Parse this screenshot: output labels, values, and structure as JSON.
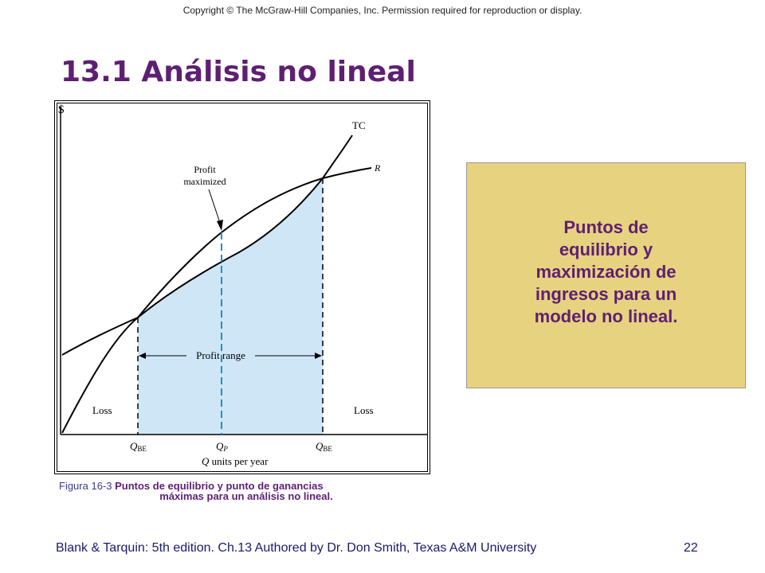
{
  "copyright": "Copyright © The McGraw-Hill Companies, Inc. Permission required for reproduction or display.",
  "title": "13.1 Análisis no lineal",
  "figure": {
    "y_axis_label": "$",
    "curve_tc_label": "TC",
    "curve_r_label": "R",
    "profit_max_label_line1": "Profit",
    "profit_max_label_line2": "maximized",
    "profit_range_label": "Profit range",
    "loss_left_label": "Loss",
    "loss_right_label": "Loss",
    "q_be_left": "Q",
    "q_be_left_sub": "BE",
    "q_p": "Q",
    "q_p_sub": "P",
    "q_be_right": "Q",
    "q_be_right_sub": "BE",
    "x_axis_label_q": "Q",
    "x_axis_label_rest": " units per year",
    "colors": {
      "profit_region": "#cfe6f7",
      "qp_dashed": "#1a93c8",
      "curves": "#000000"
    }
  },
  "caption": {
    "lead": "Figura 16-3",
    "body": "Puntos de equilibrio y punto de ganancias",
    "line2": "máximas para un análisis no lineal."
  },
  "note": {
    "text": "Puntos de\nequilibrio y\nmaximización de\ningresos para un\nmodelo no lineal."
  },
  "footer": "Blank & Tarquin: 5th edition. Ch.13 Authored by Dr. Don Smith, Texas A&M University",
  "page_number": "22"
}
